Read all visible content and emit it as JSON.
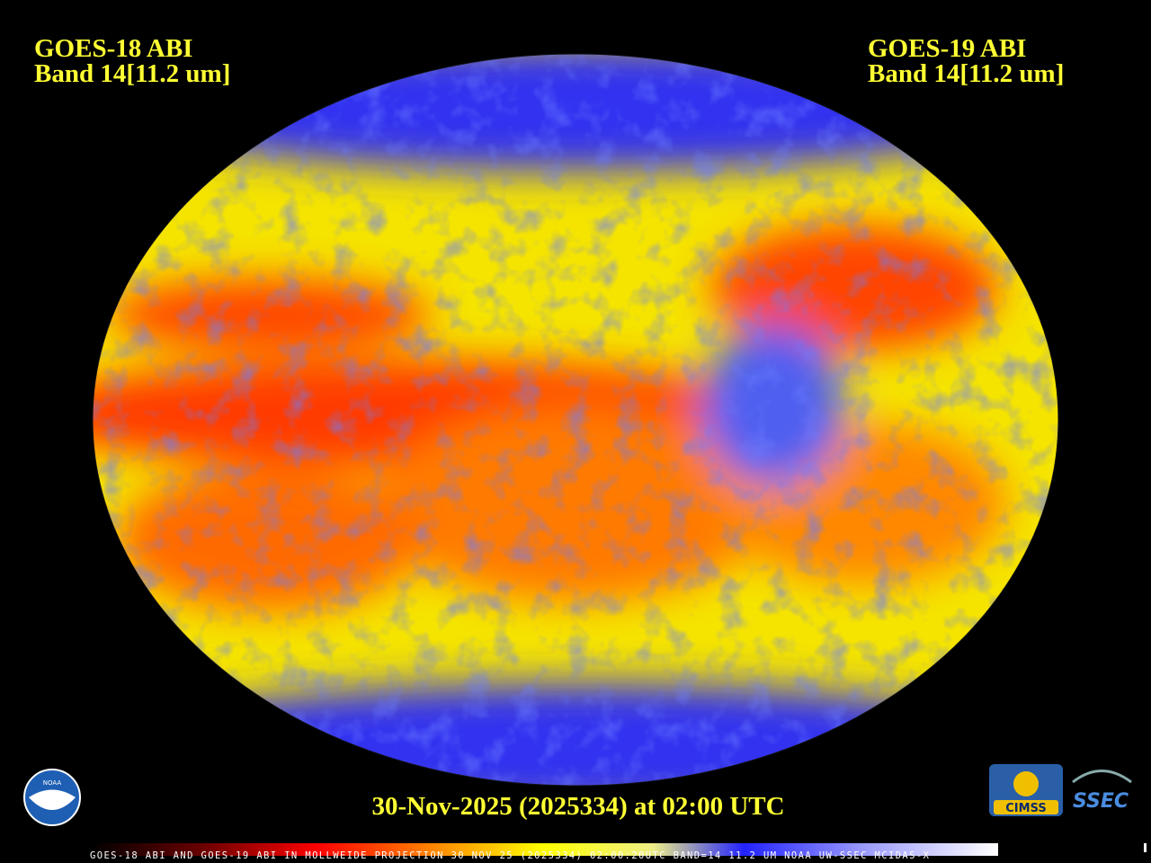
{
  "header": {
    "left": {
      "satellite": "GOES-18 ABI",
      "band": "Band 14[11.2 um]"
    },
    "right": {
      "satellite": "GOES-19 ABI",
      "band": "Band 14[11.2 um]"
    }
  },
  "timestamp": "30-Nov-2025 (2025334) at 02:00 UTC",
  "footer_text": "GOES-18 ABI AND GOES-19 ABI IN MOLLWEIDE PROJECTION 30 NOV 25 (2025334) 02:00:20UTC BAND=14 11.2 UM NOAA UW-SSEC MCIDAS-X",
  "logos": {
    "noaa": "NOAA",
    "cimss": "CIMSS",
    "ssec": "SSEC"
  }
}
